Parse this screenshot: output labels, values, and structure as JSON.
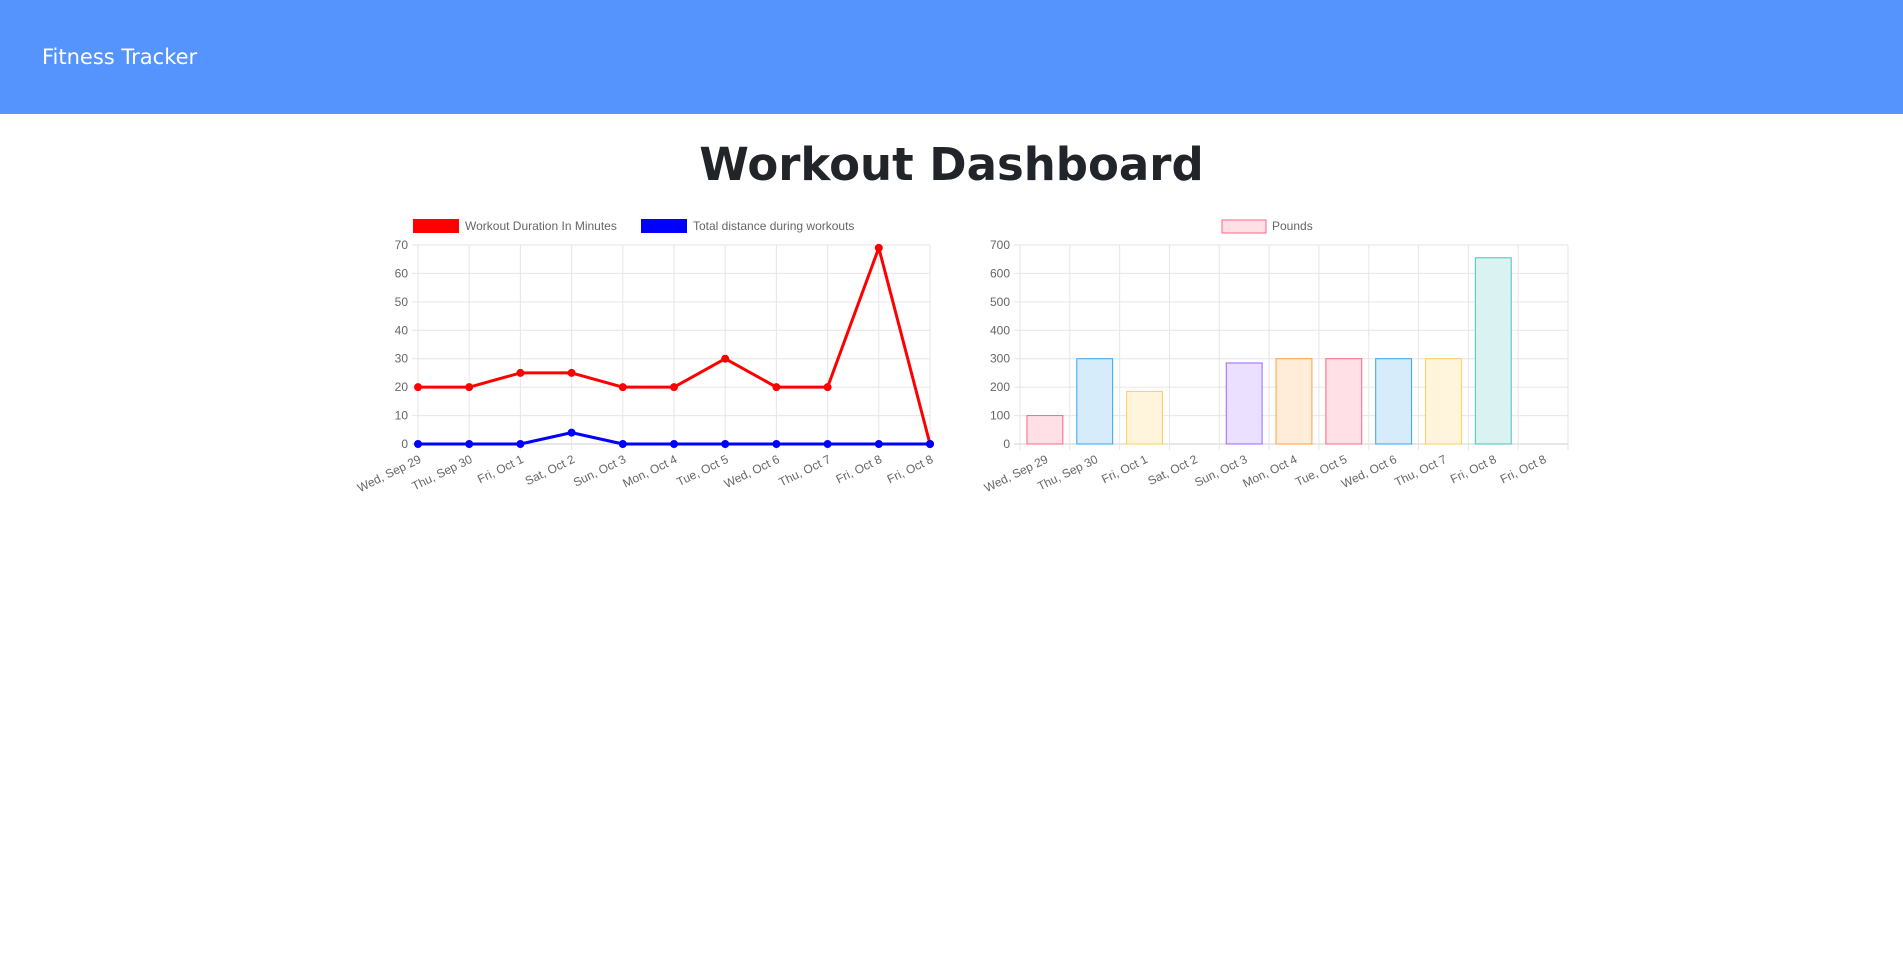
{
  "navbar": {
    "brand": "Fitness Tracker"
  },
  "page": {
    "title": "Workout Dashboard"
  },
  "chart_data": [
    {
      "type": "line",
      "categories": [
        "Wed, Sep 29",
        "Thu, Sep 30",
        "Fri, Oct 1",
        "Sat, Oct 2",
        "Sun, Oct 3",
        "Mon, Oct 4",
        "Tue, Oct 5",
        "Wed, Oct 6",
        "Thu, Oct 7",
        "Fri, Oct 8",
        "Fri, Oct 8"
      ],
      "series": [
        {
          "name": "Workout Duration In Minutes",
          "color": "#ff0000",
          "values": [
            20,
            20,
            25,
            25,
            20,
            20,
            30,
            20,
            20,
            69,
            0
          ]
        },
        {
          "name": "Total distance during workouts",
          "color": "#0000ff",
          "values": [
            0,
            0,
            0,
            4,
            0,
            0,
            0,
            0,
            0,
            0,
            0
          ]
        }
      ],
      "ylim": [
        0,
        70
      ],
      "yticks": [
        0,
        10,
        20,
        30,
        40,
        50,
        60,
        70
      ],
      "grid": true,
      "legend": "top"
    },
    {
      "type": "bar",
      "categories": [
        "Wed, Sep 29",
        "Thu, Sep 30",
        "Fri, Oct 1",
        "Sat, Oct 2",
        "Sun, Oct 3",
        "Mon, Oct 4",
        "Tue, Oct 5",
        "Wed, Oct 6",
        "Thu, Oct 7",
        "Fri, Oct 8",
        "Fri, Oct 8"
      ],
      "series": [
        {
          "name": "Pounds",
          "values": [
            100,
            300,
            185,
            0,
            285,
            300,
            300,
            300,
            300,
            655,
            0
          ]
        }
      ],
      "bar_colors": [
        {
          "fill": "#ffe0e6",
          "stroke": "#ff6384"
        },
        {
          "fill": "#d7ecfb",
          "stroke": "#36a2eb"
        },
        {
          "fill": "#fff5dd",
          "stroke": "#ffce56"
        },
        {
          "fill": "#dbf2f2",
          "stroke": "#4bc0c0"
        },
        {
          "fill": "#ebe0ff",
          "stroke": "#9966ff"
        },
        {
          "fill": "#ffecd9",
          "stroke": "#ff9f40"
        },
        {
          "fill": "#ffe0e6",
          "stroke": "#ff6384"
        },
        {
          "fill": "#d7ecfb",
          "stroke": "#36a2eb"
        },
        {
          "fill": "#fff5dd",
          "stroke": "#ffce56"
        },
        {
          "fill": "#dbf2f2",
          "stroke": "#4bc0c0"
        },
        {
          "fill": "#ebe0ff",
          "stroke": "#9966ff"
        }
      ],
      "legend_fill": "#ffe0e6",
      "legend_stroke": "#ff6384",
      "ylim": [
        0,
        700
      ],
      "yticks": [
        0,
        100,
        200,
        300,
        400,
        500,
        600,
        700
      ],
      "grid": true,
      "legend": "top"
    }
  ]
}
